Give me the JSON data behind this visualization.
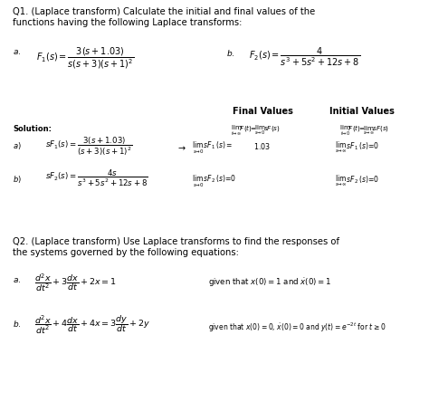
{
  "bg_color": "#ffffff",
  "text_color": "#000000",
  "title_q1": "Q1. (Laplace transform) Calculate the initial and final values of the\nfunctions having the following Laplace transforms:",
  "title_q2": "Q2. (Laplace transform) Use Laplace transforms to find the responses of\nthe systems governed by the following equations:",
  "final_values_header": "Final Values",
  "initial_values_header": "Initial Values"
}
